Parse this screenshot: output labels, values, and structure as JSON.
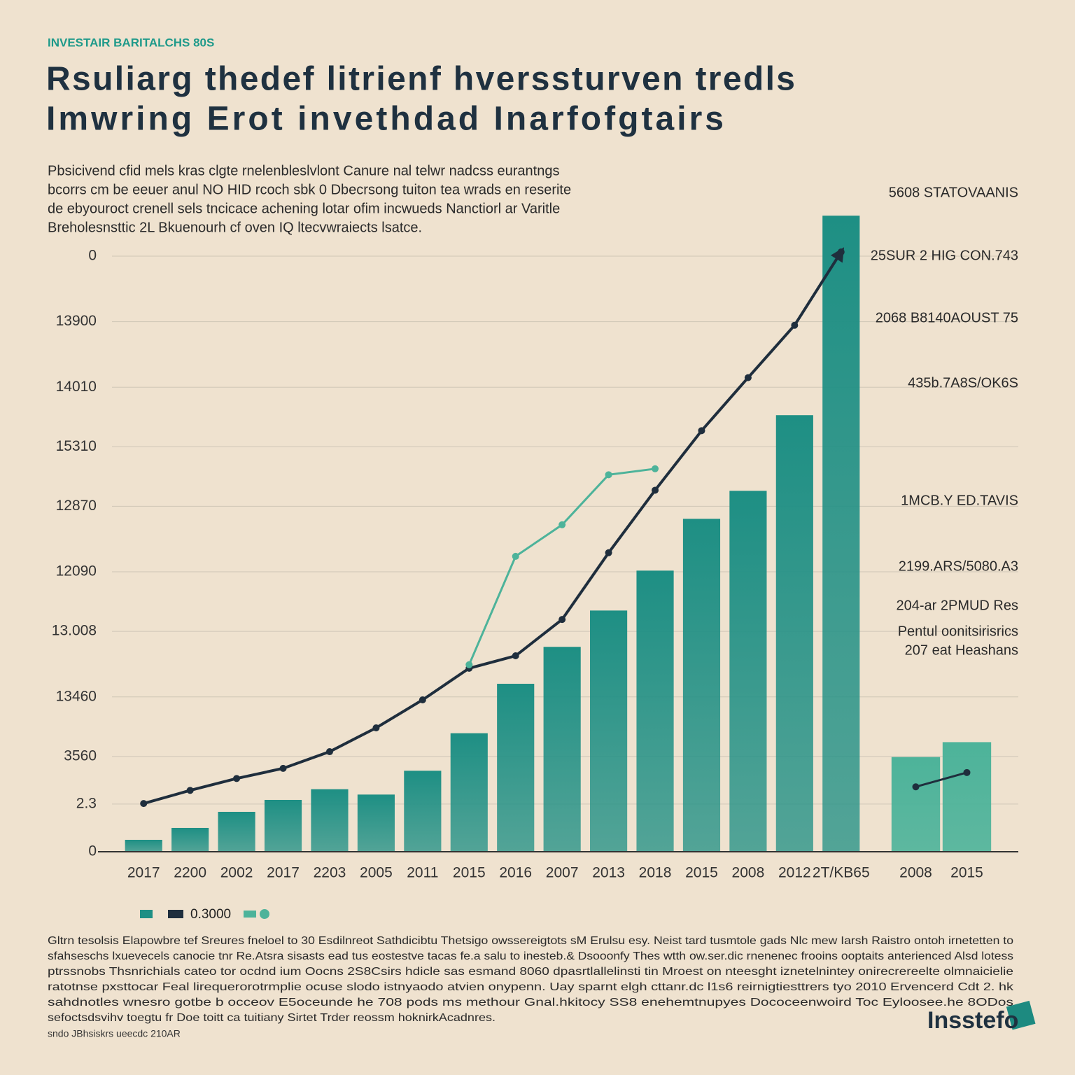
{
  "kicker": "INVESTAIR BARITALCHS 80S",
  "title_lines": [
    "Rsuliarg thedef litrienf hverssturven tredls",
    "Imwring Erot invethdad Inarfofgtairs"
  ],
  "subtitle_lines": [
    "Pbsicivend cfid mels kras clgte rnelenbleslvlont Canure nal telwr nadcss eurantngs",
    "bcorrs cm be eeuer anul NO HID rcoch sbk 0 Dbecrsong tuiton tea wrads en reserite",
    "de ebyouroct crenell sels tncicace achening lotar ofim incwueds Nanctiorl ar Varitle",
    "Breholesnsttic 2L Bkuenourh cf oven IQ ltecvwraiects lsatce."
  ],
  "chart_data": [
    {
      "type": "bar",
      "categories": [
        "2017",
        "2200",
        "2002",
        "2017",
        "2203",
        "2005",
        "2011",
        "2015",
        "2016",
        "2007",
        "2013",
        "2018",
        "2015",
        "2008",
        "2012",
        "2T/KB65"
      ],
      "ylim": [
        0,
        11
      ],
      "yticks": [
        0,
        {
          "value": 0.8,
          "label": "2.3"
        },
        {
          "value": 1.6,
          "label": "3560"
        },
        {
          "value": 2.6,
          "label": "13460"
        },
        {
          "value": 3.7,
          "label": "13.008"
        },
        {
          "value": 4.7,
          "label": "12090"
        },
        {
          "value": 5.8,
          "label": "12870"
        },
        {
          "value": 6.8,
          "label": "15310"
        },
        {
          "value": 7.8,
          "label": "14010"
        },
        {
          "value": 8.9,
          "label": "13900"
        },
        {
          "value": 10,
          "label": "0"
        }
      ],
      "grid": true,
      "series": [
        {
          "type": "bar",
          "color": "#1e8f84",
          "values": [
            0.2,
            0.4,
            0.67,
            0.87,
            1.05,
            0.96,
            1.36,
            1.99,
            2.82,
            3.44,
            4.05,
            4.72,
            5.59,
            6.06,
            7.33,
            10.68
          ]
        },
        {
          "type": "line",
          "name": "0.3000",
          "color": "#1f2e3d",
          "values": [
            0.81,
            1.03,
            1.23,
            1.4,
            1.68,
            2.08,
            2.55,
            3.08,
            3.29,
            3.9,
            5.02,
            6.07,
            7.07,
            7.96,
            8.84,
            10.07
          ]
        },
        {
          "type": "line",
          "color": "#4db39a",
          "values": [
            null,
            null,
            null,
            null,
            null,
            null,
            null,
            3.14,
            4.96,
            5.49,
            6.33,
            6.43,
            null,
            null,
            null,
            null
          ]
        }
      ],
      "annotations": [
        "5608 STATOVAANIS",
        "25SUR 2 HIG CON.743",
        "2068 B8140AOUST 75",
        "435b.7A8S/OK6S",
        "1MCB.Y ED.TAVIS",
        "2199.ARS/5080.A3",
        "204-ar 2PMUD Res",
        "Pentul oonitsirisrics",
        "207 eat Heashans"
      ]
    },
    {
      "type": "bar",
      "categories": [
        "2008",
        "2015"
      ],
      "ylim": [
        0,
        11
      ],
      "series": [
        {
          "type": "bar",
          "color": "#4db39a",
          "values": [
            1.59,
            1.84
          ]
        },
        {
          "type": "line",
          "color": "#1f2e3d",
          "values": [
            1.09,
            1.33
          ]
        }
      ]
    }
  ],
  "footnote_lines": [
    "Gltrn tesolsis Elapowbre tef Sreures fneloel to 30 Esdilnreot Sathdicibtu Thetsigo owssereigtots sM Erulsu esy. Neist tard tusmtole gads Nlc mew Iarsh Raistro ontoh irnetetten to",
    "sfahseschs lxuevecels canocie tnr Re.Atsra sisasts ead tus eostestve tacas fe.a salu to inesteb.& Dsooonfy Thes wtth ow.ser.dic rnenenec frooins ooptaits anterienced Alsd lotess",
    "ptrssnobs Thsnrichials cateo tor ocdnd ium Oocns 2S8Csirs hdicle sas esmand 8060 dpasrtlallelinsti tin Mroest on nteesght iznetelnintey onirecrereelte olmnaicielie",
    "ratotnse pxsttocar Feal lirequerorotrmplie ocuse slodo istnyaodo atvien onypenn. Uay sparnt elgh cttanr.dc l1s6 reirnigtiesttrers tyo 2010 Ervencerd Cdt 2. hk",
    "sahdnotles wnesro gotbe b occeov E5oceunde he 708 pods ms methour Gnal.hkitocy SS8 enehemtnupyes Dococeenwoird Toc Eyloosee.he 8ODos",
    "sefoctsdsvihv toegtu fr Doe toitt ca tuitiany Sirtet Trder reossm hoknirkAcadnres."
  ],
  "source": "sndo JBhsiskrs ueecdc 210AR",
  "logo": "Insstefo"
}
